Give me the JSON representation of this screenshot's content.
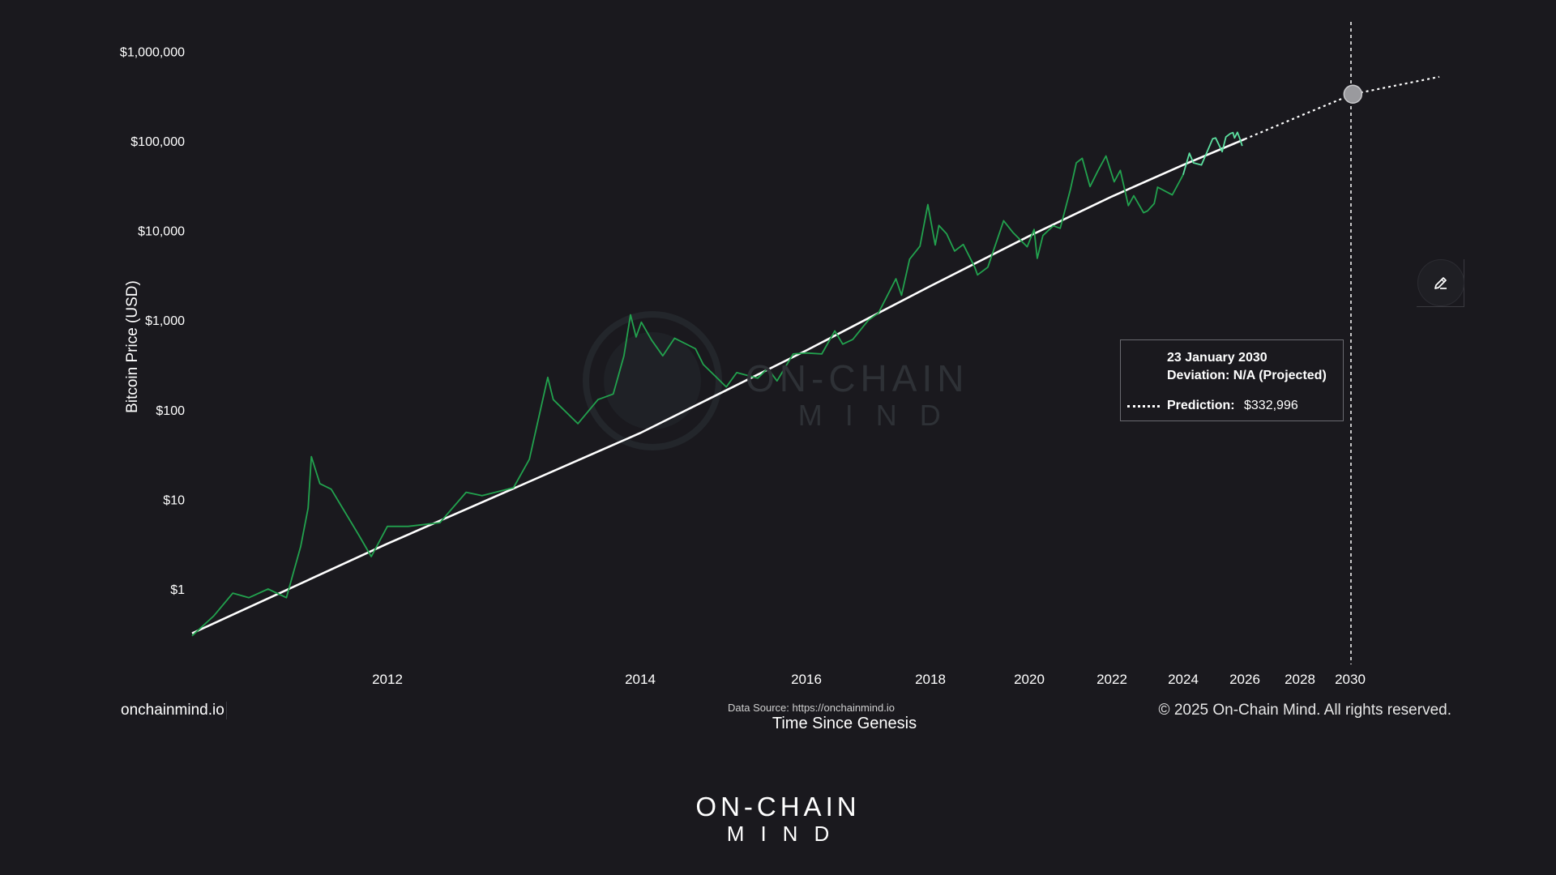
{
  "chart_data": {
    "type": "line",
    "ylabel": "Bitcoin Price (USD)",
    "xlabel": "Time Since Genesis",
    "yscale": "log",
    "ylim": [
      0.25,
      1000000
    ],
    "yticks": [
      {
        "value": 1000000,
        "label": "$1,000,000"
      },
      {
        "value": 100000,
        "label": "$100,000"
      },
      {
        "value": 10000,
        "label": "$10,000"
      },
      {
        "value": 1000,
        "label": "$1,000"
      },
      {
        "value": 100,
        "label": "$100"
      },
      {
        "value": 10,
        "label": "$10"
      },
      {
        "value": 1,
        "label": "$1"
      }
    ],
    "xticks": [
      {
        "year": 2012,
        "label": "2012"
      },
      {
        "year": 2014,
        "label": "2014"
      },
      {
        "year": 2016,
        "label": "2016"
      },
      {
        "year": 2018,
        "label": "2018"
      },
      {
        "year": 2020,
        "label": "2020"
      },
      {
        "year": 2022,
        "label": "2022"
      },
      {
        "year": 2024,
        "label": "2024"
      },
      {
        "year": 2026,
        "label": "2026"
      },
      {
        "year": 2028,
        "label": "2028"
      },
      {
        "year": 2030,
        "label": "2030"
      }
    ],
    "series": [
      {
        "kind": "price",
        "color": "#22a24e",
        "recent_color": "#5ce0a0",
        "points": [
          [
            "2010-07-18",
            0.3
          ],
          [
            "2010-09-15",
            0.5
          ],
          [
            "2010-11-06",
            0.9
          ],
          [
            "2010-12-20",
            0.8
          ],
          [
            "2011-02-10",
            1.0
          ],
          [
            "2011-04-01",
            0.8
          ],
          [
            "2011-05-10",
            3
          ],
          [
            "2011-05-30",
            8
          ],
          [
            "2011-06-08",
            30
          ],
          [
            "2011-07-01",
            15
          ],
          [
            "2011-08-01",
            13
          ],
          [
            "2011-09-01",
            8
          ],
          [
            "2011-10-15",
            4
          ],
          [
            "2011-11-18",
            2.3
          ],
          [
            "2012-01-01",
            5
          ],
          [
            "2012-03-01",
            5
          ],
          [
            "2012-06-01",
            5.5
          ],
          [
            "2012-08-16",
            12
          ],
          [
            "2012-10-01",
            11
          ],
          [
            "2012-12-31",
            13.5
          ],
          [
            "2013-02-15",
            28
          ],
          [
            "2013-04-09",
            230
          ],
          [
            "2013-04-25",
            130
          ],
          [
            "2013-07-05",
            70
          ],
          [
            "2013-09-01",
            130
          ],
          [
            "2013-10-15",
            150
          ],
          [
            "2013-11-15",
            400
          ],
          [
            "2013-12-04",
            1150
          ],
          [
            "2013-12-20",
            650
          ],
          [
            "2014-01-06",
            950
          ],
          [
            "2014-02-20",
            600
          ],
          [
            "2014-04-10",
            400
          ],
          [
            "2014-06-01",
            630
          ],
          [
            "2014-09-01",
            480
          ],
          [
            "2014-10-05",
            320
          ],
          [
            "2015-01-14",
            180
          ],
          [
            "2015-03-01",
            260
          ],
          [
            "2015-06-01",
            225
          ],
          [
            "2015-07-15",
            290
          ],
          [
            "2015-08-25",
            210
          ],
          [
            "2015-11-04",
            420
          ],
          [
            "2016-01-01",
            430
          ],
          [
            "2016-04-01",
            420
          ],
          [
            "2016-06-17",
            760
          ],
          [
            "2016-08-03",
            540
          ],
          [
            "2016-10-01",
            610
          ],
          [
            "2017-01-01",
            1000
          ],
          [
            "2017-03-01",
            1200
          ],
          [
            "2017-06-12",
            2900
          ],
          [
            "2017-07-15",
            1900
          ],
          [
            "2017-09-01",
            4800
          ],
          [
            "2017-11-01",
            6700
          ],
          [
            "2017-12-17",
            19500
          ],
          [
            "2018-02-06",
            6900
          ],
          [
            "2018-03-05",
            11400
          ],
          [
            "2018-05-01",
            9200
          ],
          [
            "2018-06-29",
            5900
          ],
          [
            "2018-09-01",
            7000
          ],
          [
            "2018-11-25",
            3900
          ],
          [
            "2018-12-15",
            3200
          ],
          [
            "2019-03-01",
            3900
          ],
          [
            "2019-06-26",
            12900
          ],
          [
            "2019-09-01",
            9600
          ],
          [
            "2019-12-17",
            6600
          ],
          [
            "2020-02-13",
            10300
          ],
          [
            "2020-03-12",
            4900
          ],
          [
            "2020-05-01",
            8800
          ],
          [
            "2020-08-01",
            11300
          ],
          [
            "2020-10-01",
            10600
          ],
          [
            "2020-12-31",
            29000
          ],
          [
            "2021-02-21",
            57000
          ],
          [
            "2021-04-14",
            64000
          ],
          [
            "2021-06-22",
            31000
          ],
          [
            "2021-09-01",
            47000
          ],
          [
            "2021-11-10",
            68000
          ],
          [
            "2022-01-24",
            35000
          ],
          [
            "2022-03-28",
            47000
          ],
          [
            "2022-06-18",
            19000
          ],
          [
            "2022-08-13",
            24500
          ],
          [
            "2022-11-21",
            15800
          ],
          [
            "2023-01-01",
            16600
          ],
          [
            "2023-03-10",
            20000
          ],
          [
            "2023-04-14",
            30500
          ],
          [
            "2023-09-11",
            25000
          ],
          [
            "2023-12-31",
            42000
          ],
          [
            "2024-03-14",
            73000
          ],
          [
            "2024-05-01",
            57000
          ],
          [
            "2024-08-05",
            54000
          ],
          [
            "2024-11-12",
            89000
          ],
          [
            "2024-12-17",
            106000
          ],
          [
            "2025-01-20",
            108000
          ],
          [
            "2025-04-08",
            76000
          ],
          [
            "2025-05-22",
            111000
          ],
          [
            "2025-07-14",
            121000
          ],
          [
            "2025-08-14",
            124000
          ],
          [
            "2025-09-01",
            108000
          ],
          [
            "2025-10-06",
            125000
          ],
          [
            "2025-11-01",
            108000
          ],
          [
            "2025-12-01",
            88000
          ]
        ]
      },
      {
        "kind": "regression",
        "color": "#ffffff",
        "points": [
          [
            "2010-07-18",
            0.32
          ],
          [
            "2012-01-01",
            3.2
          ],
          [
            "2014-01-01",
            55
          ],
          [
            "2016-01-01",
            460
          ],
          [
            "2018-01-01",
            2400
          ],
          [
            "2020-01-01",
            8700
          ],
          [
            "2022-01-01",
            24000
          ],
          [
            "2024-01-01",
            54000
          ],
          [
            "2026-01-01",
            105000
          ]
        ]
      },
      {
        "kind": "projection",
        "color": "#ffffff",
        "style": "dotted",
        "points": [
          [
            "2026-01-01",
            105000
          ],
          [
            "2028-01-01",
            190000
          ],
          [
            "2030-01-23",
            332996
          ],
          [
            "2032-01-01",
            520000
          ]
        ]
      }
    ],
    "marker": {
      "date": "2030-01-23",
      "value": 332996
    }
  },
  "tooltip": {
    "date": "23 January 2030",
    "deviation": "Deviation: N/A (Projected)",
    "prediction_label": "Prediction:",
    "prediction_value": "$332,996"
  },
  "watermark": {
    "line1": "ON-CHAIN",
    "line2": "MIND"
  },
  "footer": {
    "site": "onchainmind.io",
    "source": "Data Source: https://onchainmind.io",
    "copyright": "© 2025 On-Chain Mind. All rights reserved."
  },
  "brand": {
    "line1": "ON-CHAIN",
    "line2": "MIND"
  },
  "icons": {
    "edit": "pencil-icon"
  }
}
